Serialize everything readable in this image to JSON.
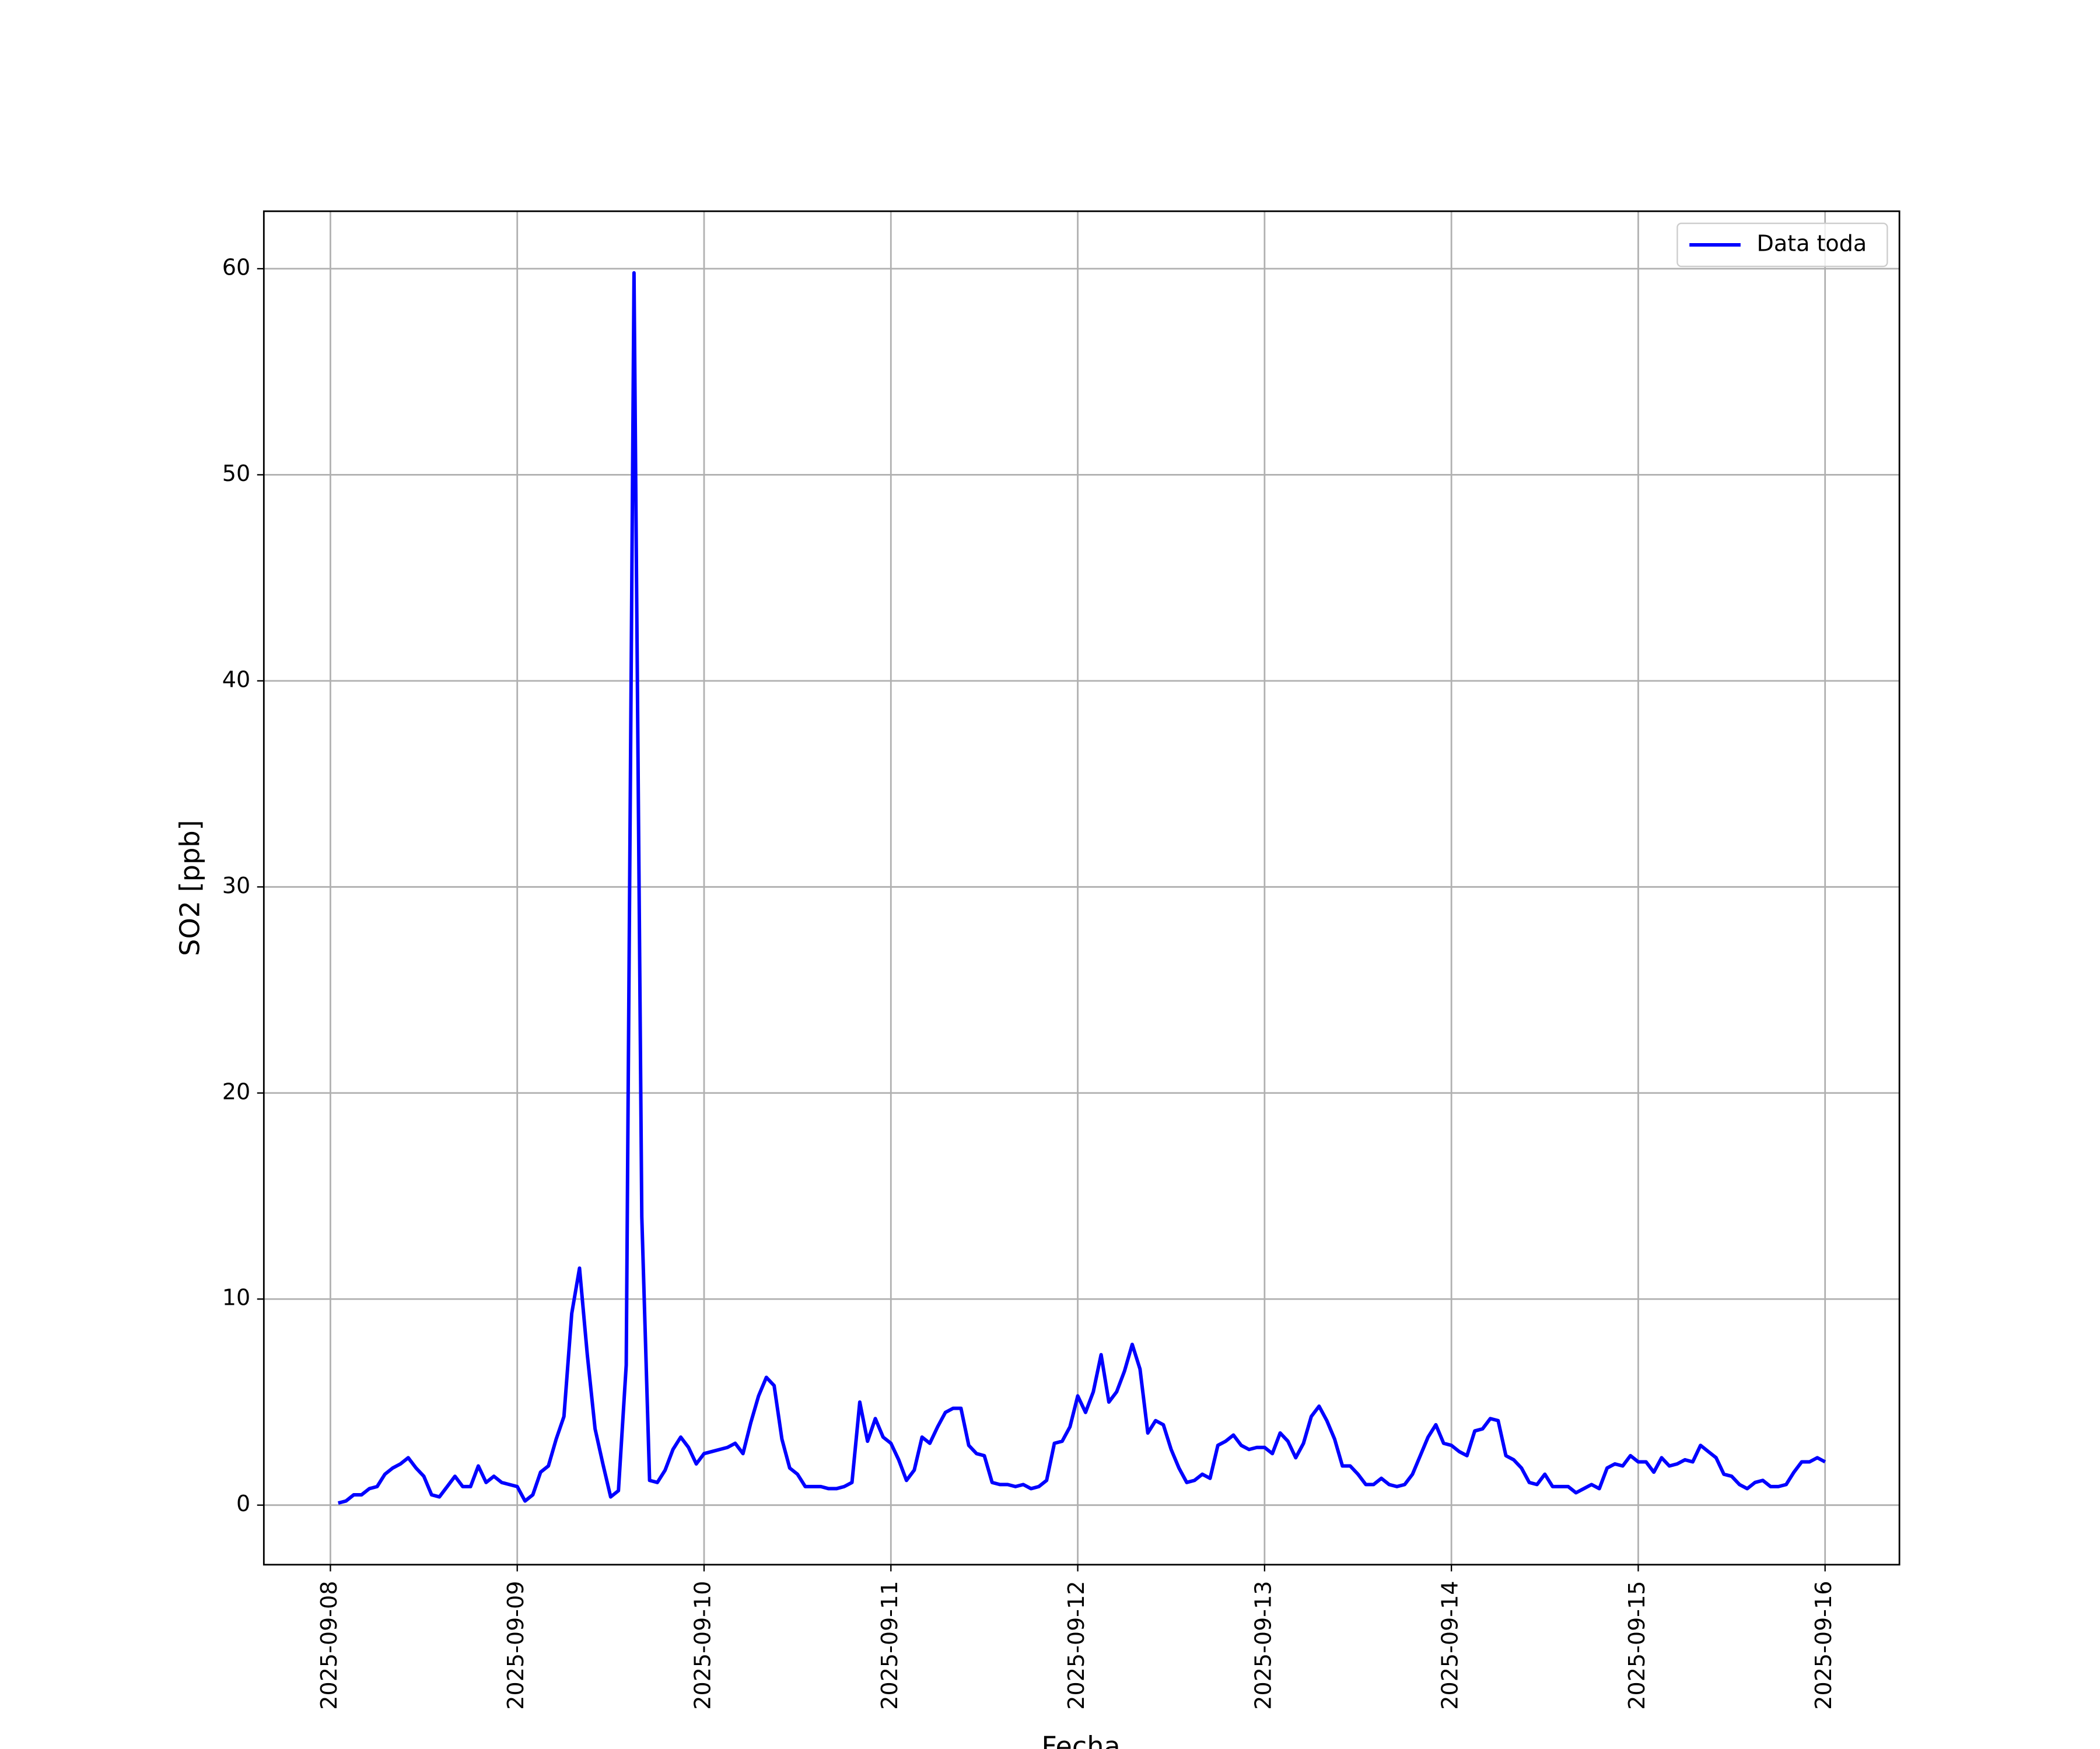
{
  "chart_data": {
    "type": "line",
    "xlabel": "Fecha",
    "ylabel": "SO2 [ppb]",
    "x": [
      "2025-09-08T01:00",
      "2025-09-08T02:00",
      "2025-09-08T03:00",
      "2025-09-08T04:00",
      "2025-09-08T05:00",
      "2025-09-08T06:00",
      "2025-09-08T07:00",
      "2025-09-08T08:00",
      "2025-09-08T09:00",
      "2025-09-08T10:00",
      "2025-09-08T11:00",
      "2025-09-08T12:00",
      "2025-09-08T13:00",
      "2025-09-08T14:00",
      "2025-09-08T15:00",
      "2025-09-08T16:00",
      "2025-09-08T17:00",
      "2025-09-08T18:00",
      "2025-09-08T19:00",
      "2025-09-08T20:00",
      "2025-09-08T21:00",
      "2025-09-08T22:00",
      "2025-09-08T23:00",
      "2025-09-09T00:00",
      "2025-09-09T01:00",
      "2025-09-09T02:00",
      "2025-09-09T03:00",
      "2025-09-09T04:00",
      "2025-09-09T05:00",
      "2025-09-09T06:00",
      "2025-09-09T07:00",
      "2025-09-09T08:00",
      "2025-09-09T09:00",
      "2025-09-09T10:00",
      "2025-09-09T11:00",
      "2025-09-09T12:00",
      "2025-09-09T13:00",
      "2025-09-09T14:00",
      "2025-09-09T15:00",
      "2025-09-09T16:00",
      "2025-09-09T17:00",
      "2025-09-09T18:00",
      "2025-09-09T19:00",
      "2025-09-09T20:00",
      "2025-09-09T21:00",
      "2025-09-09T22:00",
      "2025-09-09T23:00",
      "2025-09-10T00:00",
      "2025-09-10T01:00",
      "2025-09-10T02:00",
      "2025-09-10T03:00",
      "2025-09-10T04:00",
      "2025-09-10T05:00",
      "2025-09-10T06:00",
      "2025-09-10T07:00",
      "2025-09-10T08:00",
      "2025-09-10T09:00",
      "2025-09-10T10:00",
      "2025-09-10T11:00",
      "2025-09-10T12:00",
      "2025-09-10T13:00",
      "2025-09-10T14:00",
      "2025-09-10T15:00",
      "2025-09-10T16:00",
      "2025-09-10T17:00",
      "2025-09-10T18:00",
      "2025-09-10T19:00",
      "2025-09-10T20:00",
      "2025-09-10T21:00",
      "2025-09-10T22:00",
      "2025-09-10T23:00",
      "2025-09-11T00:00",
      "2025-09-11T01:00",
      "2025-09-11T02:00",
      "2025-09-11T03:00",
      "2025-09-11T04:00",
      "2025-09-11T05:00",
      "2025-09-11T06:00",
      "2025-09-11T07:00",
      "2025-09-11T08:00",
      "2025-09-11T09:00",
      "2025-09-11T10:00",
      "2025-09-11T11:00",
      "2025-09-11T12:00",
      "2025-09-11T13:00",
      "2025-09-11T14:00",
      "2025-09-11T15:00",
      "2025-09-11T16:00",
      "2025-09-11T17:00",
      "2025-09-11T18:00",
      "2025-09-11T19:00",
      "2025-09-11T20:00",
      "2025-09-11T21:00",
      "2025-09-11T22:00",
      "2025-09-11T23:00",
      "2025-09-12T00:00",
      "2025-09-12T01:00",
      "2025-09-12T02:00",
      "2025-09-12T03:00",
      "2025-09-12T04:00",
      "2025-09-12T05:00",
      "2025-09-12T06:00",
      "2025-09-12T07:00",
      "2025-09-12T08:00",
      "2025-09-12T09:00",
      "2025-09-12T10:00",
      "2025-09-12T11:00",
      "2025-09-12T12:00",
      "2025-09-12T13:00",
      "2025-09-12T14:00",
      "2025-09-12T15:00",
      "2025-09-12T16:00",
      "2025-09-12T17:00",
      "2025-09-12T18:00",
      "2025-09-12T19:00",
      "2025-09-12T20:00",
      "2025-09-12T21:00",
      "2025-09-12T22:00",
      "2025-09-12T23:00",
      "2025-09-13T00:00",
      "2025-09-13T01:00",
      "2025-09-13T02:00",
      "2025-09-13T03:00",
      "2025-09-13T04:00",
      "2025-09-13T05:00",
      "2025-09-13T06:00",
      "2025-09-13T07:00",
      "2025-09-13T08:00",
      "2025-09-13T09:00",
      "2025-09-13T10:00",
      "2025-09-13T11:00",
      "2025-09-13T12:00",
      "2025-09-13T13:00",
      "2025-09-13T14:00",
      "2025-09-13T15:00",
      "2025-09-13T16:00",
      "2025-09-13T17:00",
      "2025-09-13T18:00",
      "2025-09-13T19:00",
      "2025-09-13T20:00",
      "2025-09-13T21:00",
      "2025-09-13T22:00",
      "2025-09-13T23:00",
      "2025-09-14T00:00",
      "2025-09-14T01:00",
      "2025-09-14T02:00",
      "2025-09-14T03:00",
      "2025-09-14T04:00",
      "2025-09-14T05:00",
      "2025-09-14T06:00",
      "2025-09-14T07:00",
      "2025-09-14T08:00",
      "2025-09-14T09:00",
      "2025-09-14T10:00",
      "2025-09-14T11:00",
      "2025-09-14T12:00",
      "2025-09-14T13:00",
      "2025-09-14T14:00",
      "2025-09-14T15:00",
      "2025-09-14T16:00",
      "2025-09-14T17:00",
      "2025-09-14T18:00",
      "2025-09-14T19:00",
      "2025-09-14T20:00",
      "2025-09-14T21:00",
      "2025-09-14T22:00",
      "2025-09-14T23:00",
      "2025-09-15T00:00",
      "2025-09-15T01:00",
      "2025-09-15T02:00",
      "2025-09-15T03:00",
      "2025-09-15T04:00",
      "2025-09-15T05:00",
      "2025-09-15T06:00",
      "2025-09-15T07:00",
      "2025-09-15T08:00",
      "2025-09-15T09:00",
      "2025-09-15T10:00",
      "2025-09-15T11:00",
      "2025-09-15T12:00",
      "2025-09-15T13:00",
      "2025-09-15T14:00",
      "2025-09-15T15:00",
      "2025-09-15T16:00",
      "2025-09-15T17:00",
      "2025-09-15T18:00",
      "2025-09-15T19:00",
      "2025-09-15T20:00",
      "2025-09-15T21:00",
      "2025-09-15T22:00",
      "2025-09-15T23:00",
      "2025-09-16T00:00"
    ],
    "series": [
      {
        "name": "Data toda",
        "color": "#0000ff",
        "values": [
          0.1,
          0.2,
          0.5,
          0.5,
          0.8,
          0.9,
          1.5,
          1.8,
          2.0,
          2.3,
          1.8,
          1.4,
          0.5,
          0.4,
          0.9,
          1.4,
          0.9,
          0.9,
          1.9,
          1.1,
          1.4,
          1.1,
          1.0,
          0.9,
          0.2,
          0.5,
          1.6,
          1.9,
          3.2,
          4.3,
          9.3,
          11.5,
          7.3,
          3.7,
          2.0,
          0.4,
          0.7,
          6.8,
          59.8,
          14.0,
          1.2,
          1.1,
          1.7,
          2.7,
          3.3,
          2.8,
          2.0,
          2.5,
          2.6,
          2.7,
          2.8,
          3.0,
          2.5,
          4.0,
          5.3,
          6.2,
          5.8,
          3.2,
          1.8,
          1.5,
          0.9,
          0.9,
          0.9,
          0.8,
          0.8,
          0.9,
          1.1,
          5.0,
          3.1,
          4.2,
          3.3,
          3.0,
          2.2,
          1.2,
          1.7,
          3.3,
          3.0,
          3.8,
          4.5,
          4.7,
          4.7,
          2.9,
          2.5,
          2.4,
          1.1,
          1.0,
          1.0,
          0.9,
          1.0,
          0.8,
          0.9,
          1.2,
          3.0,
          3.1,
          3.8,
          5.3,
          4.5,
          5.5,
          7.3,
          5.0,
          5.5,
          6.5,
          7.8,
          6.6,
          3.5,
          4.1,
          3.9,
          2.7,
          1.8,
          1.1,
          1.2,
          1.5,
          1.3,
          2.9,
          3.1,
          3.4,
          2.9,
          2.7,
          2.8,
          2.8,
          2.5,
          3.5,
          3.1,
          2.3,
          3.0,
          4.3,
          4.8,
          4.1,
          3.2,
          1.9,
          1.9,
          1.5,
          1.0,
          1.0,
          1.3,
          1.0,
          0.9,
          1.0,
          1.5,
          2.4,
          3.3,
          3.9,
          3.0,
          2.9,
          2.6,
          2.4,
          3.6,
          3.7,
          4.2,
          4.1,
          2.4,
          2.2,
          1.8,
          1.1,
          1.0,
          1.5,
          0.9,
          0.9,
          0.9,
          0.6,
          0.8,
          1.0,
          0.8,
          1.8,
          2.0,
          1.9,
          2.4,
          2.1,
          2.1,
          1.6,
          2.3,
          1.9,
          2.0,
          2.2,
          2.1,
          2.9,
          2.6,
          2.3,
          1.5,
          1.4,
          1.0,
          0.8,
          1.1,
          1.2,
          0.9,
          0.9,
          1.0,
          1.6,
          2.1,
          2.1,
          2.3,
          2.1
        ]
      }
    ],
    "xlim": [
      "2025-09-07T15:27",
      "2025-09-16T09:33"
    ],
    "xticks": [
      {
        "value": "2025-09-08T00:00",
        "label": "2025-09-08"
      },
      {
        "value": "2025-09-09T00:00",
        "label": "2025-09-09"
      },
      {
        "value": "2025-09-10T00:00",
        "label": "2025-09-10"
      },
      {
        "value": "2025-09-11T00:00",
        "label": "2025-09-11"
      },
      {
        "value": "2025-09-12T00:00",
        "label": "2025-09-12"
      },
      {
        "value": "2025-09-13T00:00",
        "label": "2025-09-13"
      },
      {
        "value": "2025-09-14T00:00",
        "label": "2025-09-14"
      },
      {
        "value": "2025-09-15T00:00",
        "label": "2025-09-15"
      },
      {
        "value": "2025-09-16T00:00",
        "label": "2025-09-16"
      }
    ],
    "ylim": [
      -2.89,
      62.79
    ],
    "yticks": [
      0,
      10,
      20,
      30,
      40,
      50,
      60
    ],
    "grid": true,
    "legend": "upper right"
  }
}
